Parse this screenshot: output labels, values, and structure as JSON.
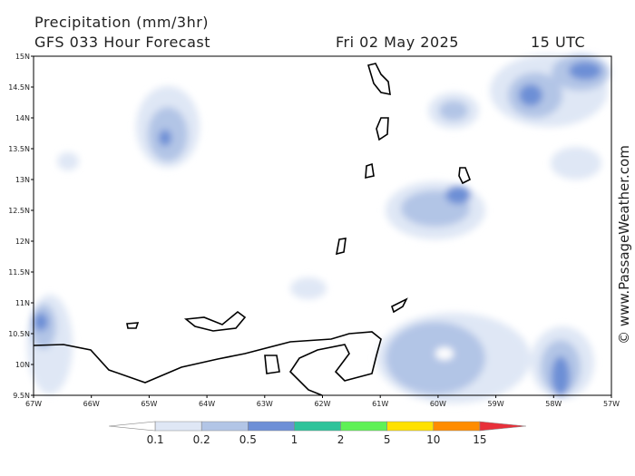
{
  "header": {
    "title": "Precipitation (mm/3hr)",
    "subtitle": "GFS 033 Hour Forecast",
    "date": "Fri 02 May 2025",
    "time": "15 UTC"
  },
  "map": {
    "lat_labels": [
      "15N",
      "14.5N",
      "14N",
      "13.5N",
      "13N",
      "12.5N",
      "12N",
      "11.5N",
      "11N",
      "10.5N",
      "10N",
      "9.5N"
    ],
    "lon_labels": [
      "67W",
      "66W",
      "65W",
      "64W",
      "63W",
      "62W",
      "61W",
      "60W",
      "59W",
      "58W",
      "57W"
    ]
  },
  "legend": {
    "labels": [
      "0.1",
      "0.2",
      "0.5",
      "1",
      "2",
      "5",
      "10",
      "15"
    ],
    "colors": [
      "#ffffff",
      "#dfe7f5",
      "#b2c5e6",
      "#6d8fd6",
      "#2ec39a",
      "#5ff156",
      "#ffe100",
      "#ff8c00",
      "#e8303a"
    ]
  },
  "credit": "© www.PassageWeather.com"
}
